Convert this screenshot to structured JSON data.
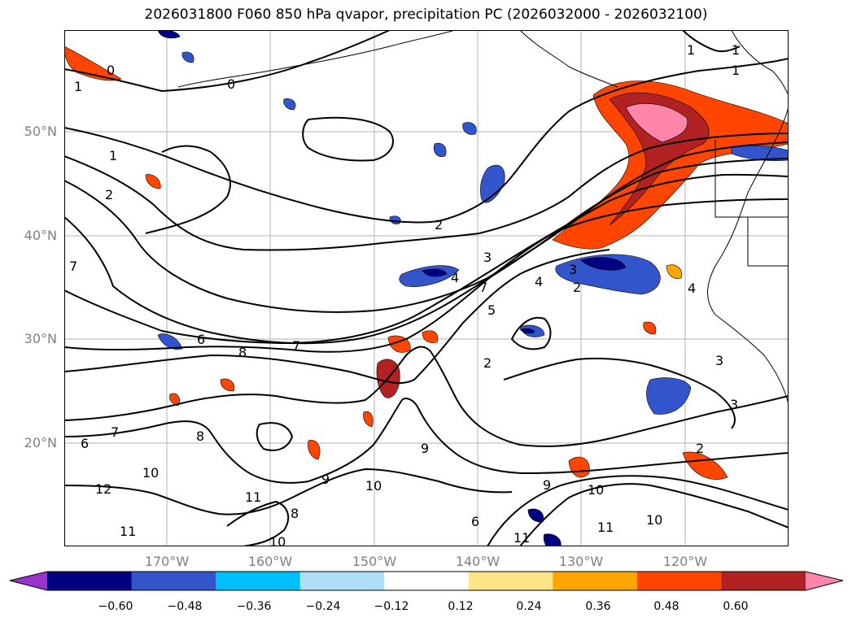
{
  "title": "2026031800 F060 850 hPa qvapor, precipitation PC (2026032000 - 2026032100)",
  "map": {
    "latitude_labels": [
      "50°N",
      "40°N",
      "30°N",
      "20°N"
    ],
    "longitude_labels": [
      "170°W",
      "160°W",
      "150°W",
      "140°W",
      "130°W",
      "120°W"
    ],
    "contour_labels": [
      {
        "text": "0"
      },
      {
        "text": "1"
      },
      {
        "text": "0"
      },
      {
        "text": "1"
      },
      {
        "text": "1"
      },
      {
        "text": "1"
      },
      {
        "text": "1"
      },
      {
        "text": "2"
      },
      {
        "text": "2"
      },
      {
        "text": "3"
      },
      {
        "text": "4"
      },
      {
        "text": "7"
      },
      {
        "text": "5"
      },
      {
        "text": "4"
      },
      {
        "text": "3"
      },
      {
        "text": "2"
      },
      {
        "text": "4"
      },
      {
        "text": "6"
      },
      {
        "text": "8"
      },
      {
        "text": "7"
      },
      {
        "text": "2"
      },
      {
        "text": "3"
      },
      {
        "text": "3"
      },
      {
        "text": "2"
      },
      {
        "text": "6"
      },
      {
        "text": "7"
      },
      {
        "text": "8"
      },
      {
        "text": "10"
      },
      {
        "text": "12"
      },
      {
        "text": "11"
      },
      {
        "text": "8"
      },
      {
        "text": "9"
      },
      {
        "text": "10"
      },
      {
        "text": "9"
      },
      {
        "text": "6"
      },
      {
        "text": "9"
      },
      {
        "text": "10"
      },
      {
        "text": "10"
      },
      {
        "text": "11"
      },
      {
        "text": "11"
      },
      {
        "text": "10"
      },
      {
        "text": "11"
      },
      {
        "text": "7"
      }
    ]
  },
  "colorbar": {
    "colors": [
      "#9933cc",
      "#000080",
      "#3355cc",
      "#00bfff",
      "#b0e0f8",
      "#ffffff",
      "#ffe58a",
      "#ffa500",
      "#ff4500",
      "#b22222",
      "#ff85aa"
    ],
    "tick_labels": [
      "−0.60",
      "−0.48",
      "−0.36",
      "−0.24",
      "−0.12",
      "0.12",
      "0.24",
      "0.36",
      "0.48",
      "0.60"
    ]
  }
}
